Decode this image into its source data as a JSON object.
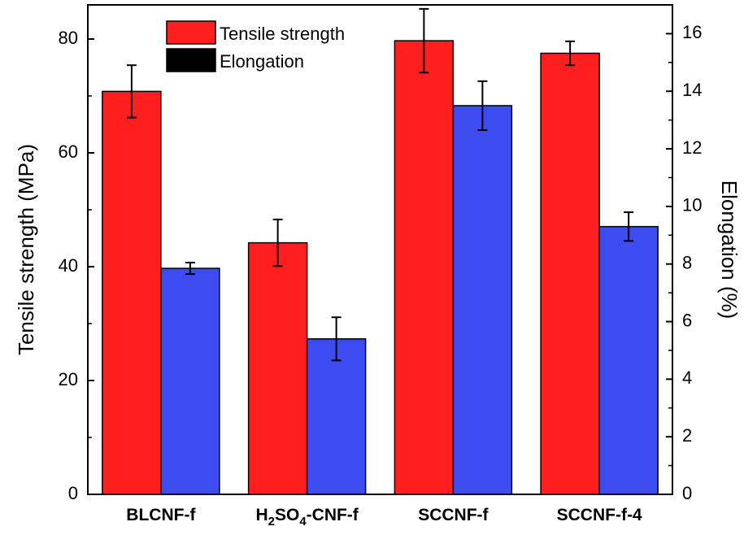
{
  "chart_data": {
    "type": "bar",
    "categories": [
      {
        "label": "BLCNF-f",
        "main": "BLCNF-f"
      },
      {
        "label": "H2SO4-CNF-f",
        "main": "H",
        "sub1": "2",
        "mid": "SO",
        "sub2": "4",
        "tail": "-CNF-f"
      },
      {
        "label": "SCCNF-f",
        "main": "SCCNF-f"
      },
      {
        "label": "SCCNF-f-4",
        "main": "SCCNF-f-4"
      }
    ],
    "series": [
      {
        "name": "Tensile strength",
        "axis": "left",
        "color": "#ff1f1f",
        "values": [
          70.8,
          44.2,
          79.7,
          77.5
        ],
        "errors": [
          4.6,
          4.1,
          5.6,
          2.1
        ]
      },
      {
        "name": "Elongation",
        "axis": "right",
        "color": "#3c4cf0",
        "values": [
          7.85,
          5.4,
          13.5,
          9.3
        ],
        "errors": [
          0.2,
          0.75,
          0.85,
          0.5
        ]
      }
    ],
    "legend": {
      "position": "top-center",
      "entries": [
        {
          "label": "Tensile strength",
          "swatch_color": "#ff1f1f"
        },
        {
          "label": "Elongation",
          "swatch_color": "#000000"
        }
      ]
    },
    "left_axis": {
      "label": "Tensile strength (MPa)",
      "ylim": [
        0,
        86
      ],
      "ticks": [
        "0",
        "20",
        "40",
        "60",
        "80"
      ]
    },
    "right_axis": {
      "label": "Elongation (%)",
      "ylim": [
        0,
        17
      ],
      "ticks": [
        "0",
        "2",
        "4",
        "6",
        "8",
        "10",
        "12",
        "14",
        "16"
      ]
    },
    "xlabel": "",
    "grid": false
  }
}
